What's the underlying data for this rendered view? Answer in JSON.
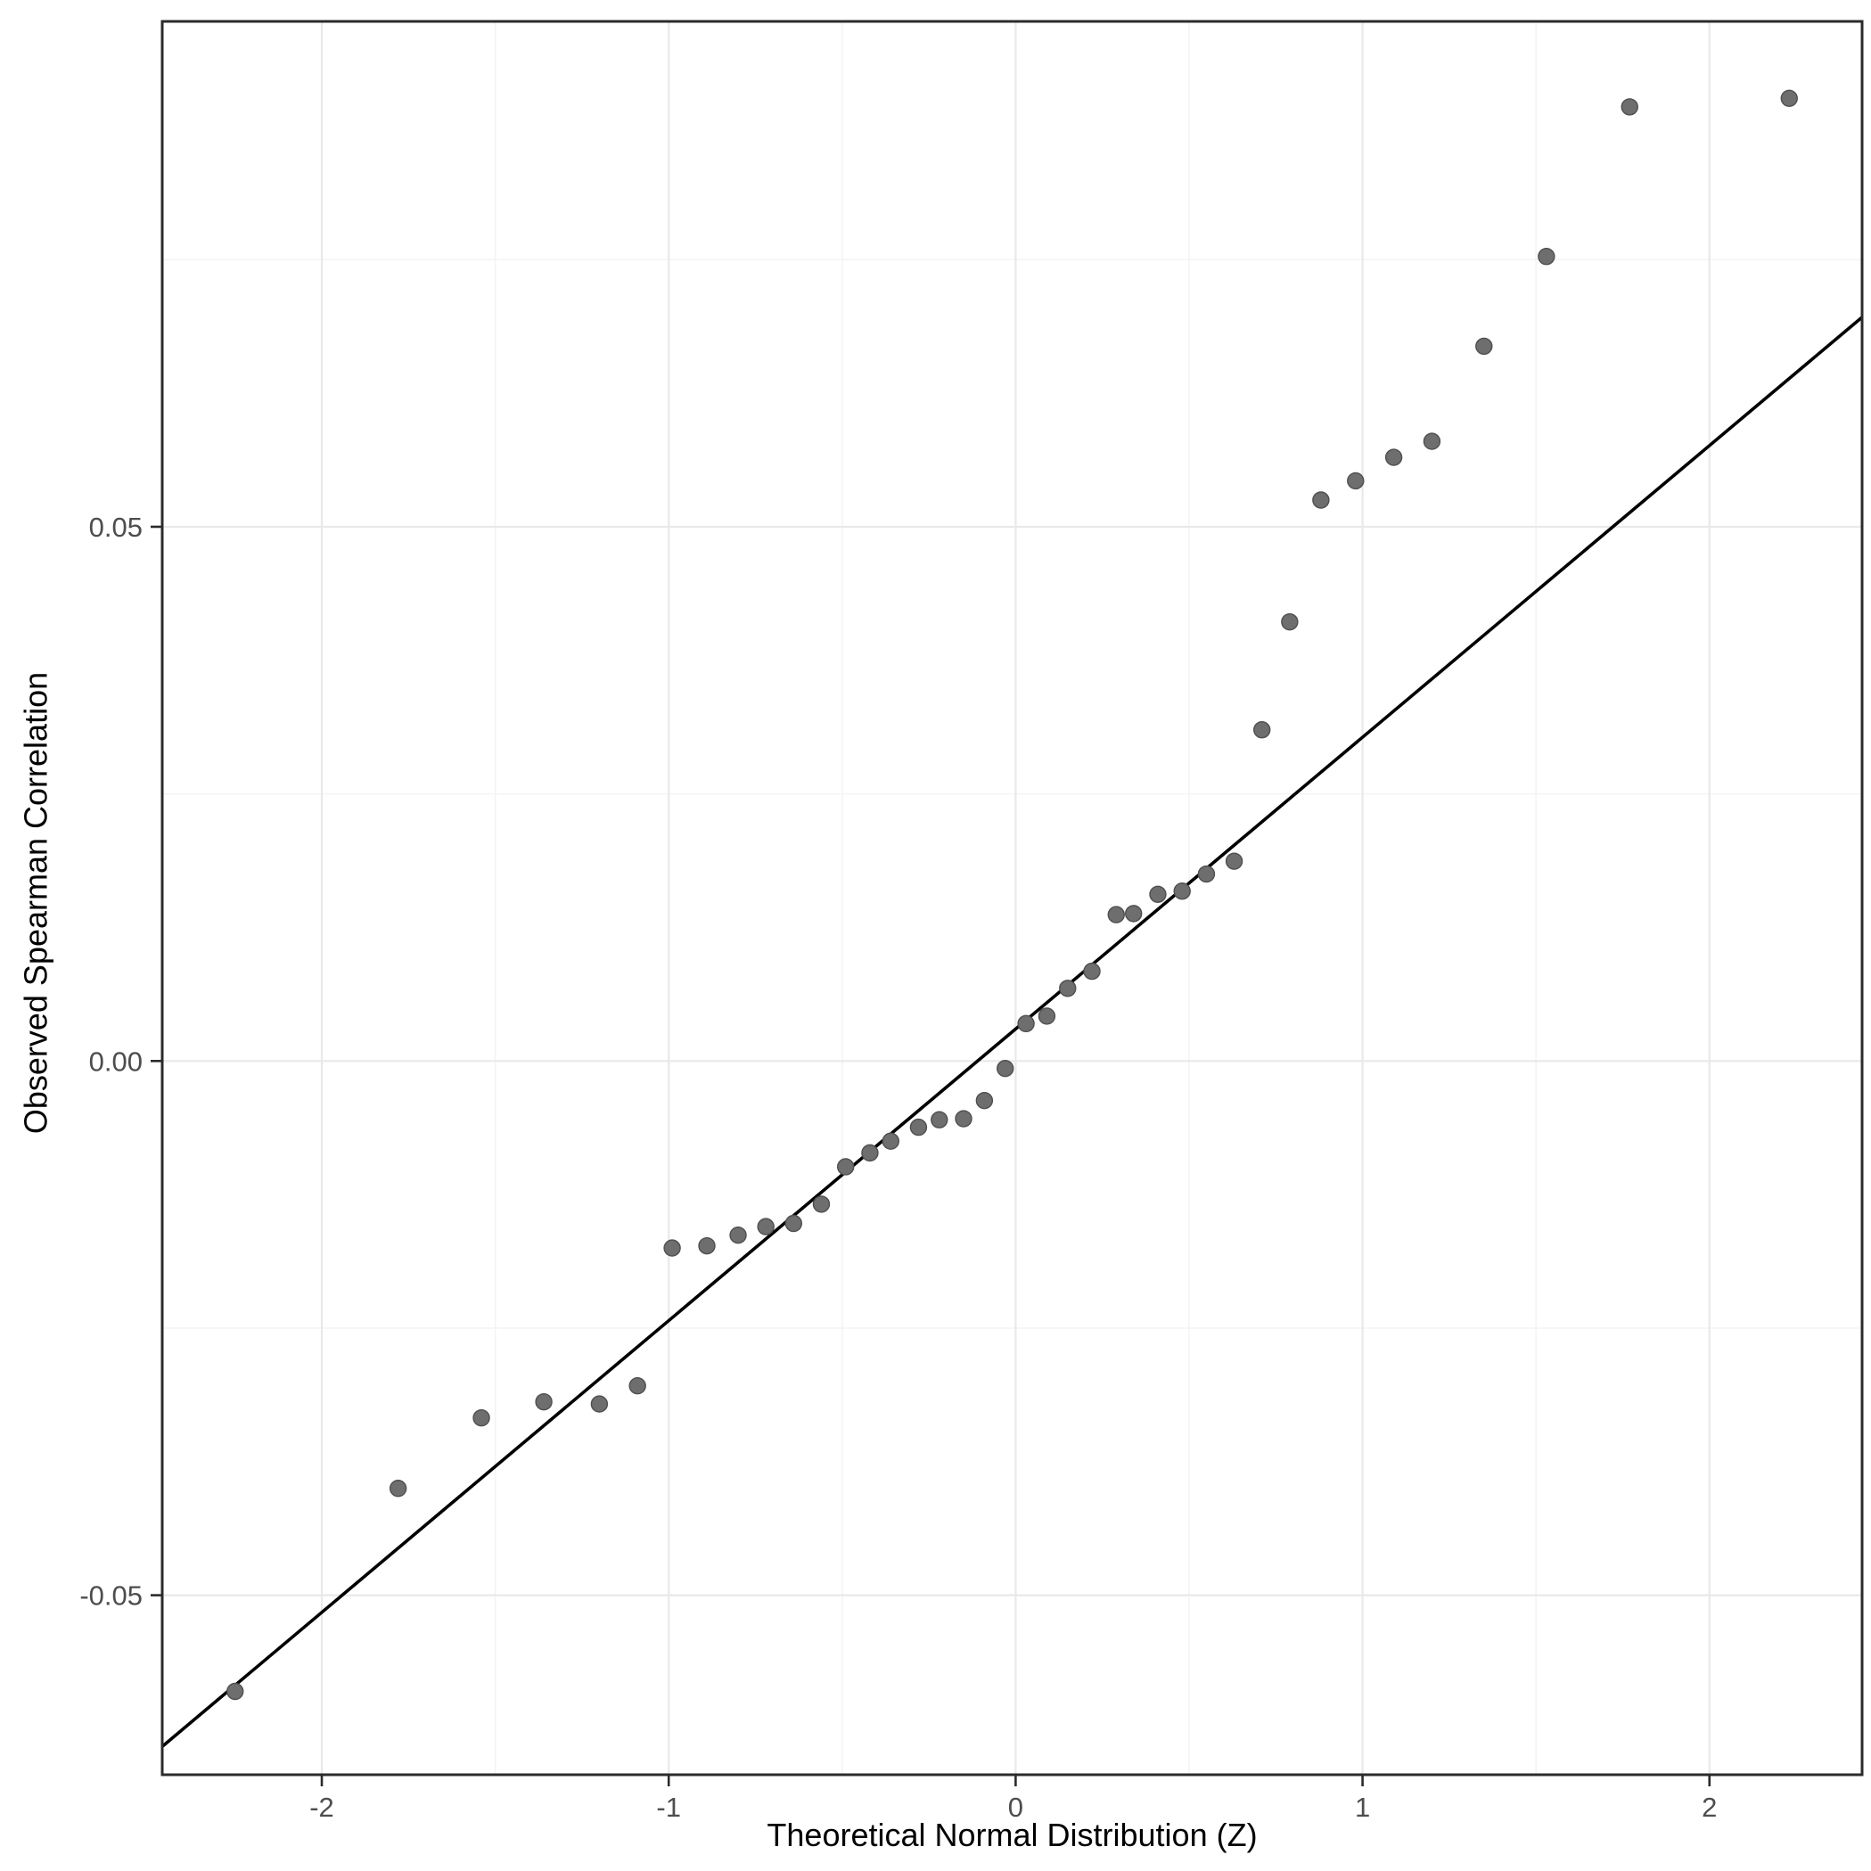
{
  "chart_data": {
    "type": "scatter",
    "title": "",
    "xlabel": "Theoretical Normal Distribution (Z)",
    "ylabel": "Observed Spearman Correlation",
    "xlim": [
      -2.46,
      2.44
    ],
    "ylim": [
      -0.0668,
      0.0973
    ],
    "grid": "on",
    "legend": "none",
    "x_ticks": [
      {
        "value": -2,
        "label": "-2"
      },
      {
        "value": -1,
        "label": "-1"
      },
      {
        "value": 0,
        "label": "0"
      },
      {
        "value": 1,
        "label": "1"
      },
      {
        "value": 2,
        "label": "2"
      }
    ],
    "y_ticks": [
      {
        "value": -0.05,
        "label": "-0.05"
      },
      {
        "value": 0.0,
        "label": "0.00"
      },
      {
        "value": 0.05,
        "label": "0.05"
      }
    ],
    "x_minor_ticks": [
      -1.5,
      -0.5,
      0.5,
      1.5
    ],
    "y_minor_ticks": [
      -0.025,
      0.025,
      0.075
    ],
    "reference_line": {
      "slope": 0.0273,
      "intercept": 0.003
    },
    "series": [
      {
        "name": "qq-points",
        "points": [
          [
            -2.25,
            -0.059
          ],
          [
            -1.78,
            -0.04
          ],
          [
            -1.54,
            -0.0334
          ],
          [
            -1.36,
            -0.0319
          ],
          [
            -1.2,
            -0.0321
          ],
          [
            -1.09,
            -0.0304
          ],
          [
            -0.99,
            -0.0175
          ],
          [
            -0.89,
            -0.0173
          ],
          [
            -0.8,
            -0.0163
          ],
          [
            -0.72,
            -0.0155
          ],
          [
            -0.64,
            -0.0152
          ],
          [
            -0.56,
            -0.0134
          ],
          [
            -0.49,
            -0.0099
          ],
          [
            -0.42,
            -0.0086
          ],
          [
            -0.36,
            -0.0075
          ],
          [
            -0.28,
            -0.0062
          ],
          [
            -0.22,
            -0.0055
          ],
          [
            -0.15,
            -0.0054
          ],
          [
            -0.09,
            -0.0037
          ],
          [
            -0.03,
            -0.0007
          ],
          [
            0.03,
            0.0035
          ],
          [
            0.09,
            0.0042
          ],
          [
            0.15,
            0.0068
          ],
          [
            0.22,
            0.0084
          ],
          [
            0.29,
            0.0137
          ],
          [
            0.34,
            0.0138
          ],
          [
            0.41,
            0.0156
          ],
          [
            0.48,
            0.0159
          ],
          [
            0.55,
            0.0175
          ],
          [
            0.63,
            0.0187
          ],
          [
            0.71,
            0.031
          ],
          [
            0.79,
            0.0411
          ],
          [
            0.88,
            0.0525
          ],
          [
            0.98,
            0.0543
          ],
          [
            1.09,
            0.0565
          ],
          [
            1.2,
            0.058
          ],
          [
            1.35,
            0.0669
          ],
          [
            1.53,
            0.0753
          ],
          [
            1.77,
            0.0893
          ],
          [
            2.23,
            0.0901
          ]
        ]
      }
    ]
  },
  "style": {
    "point_fill": "#6e6e6e",
    "point_stroke": "#4f4f4f",
    "line_color": "#000000",
    "grid_major_color": "#e9e9e9",
    "grid_minor_color": "#f4f4f4",
    "panel_border_color": "#2b2b2b",
    "tick_color": "#2b2b2b",
    "tick_label_color": "#4d4d4d",
    "panel_background": "#ffffff"
  }
}
